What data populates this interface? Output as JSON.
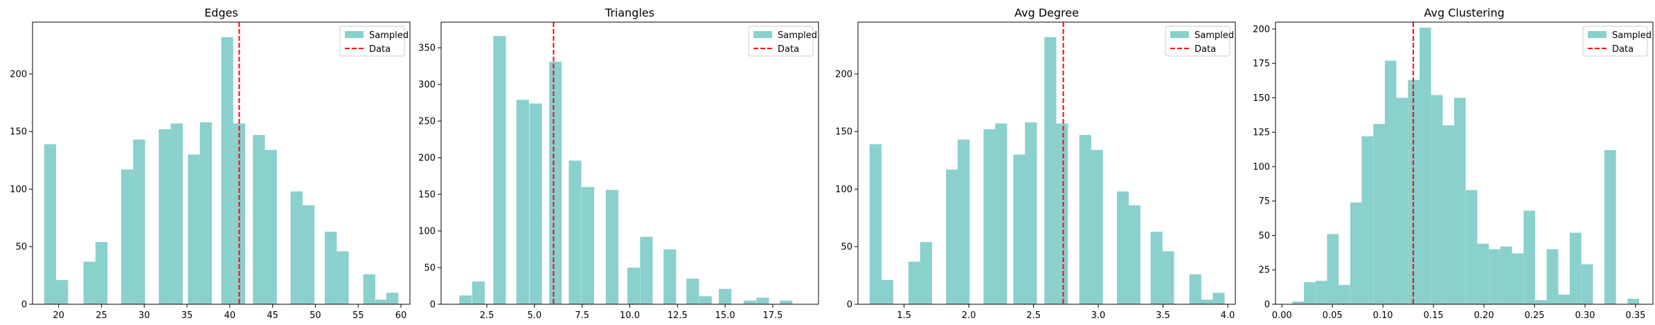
{
  "chart_data": [
    {
      "type": "bar",
      "title": "Edges",
      "xlabel": "",
      "ylabel": "",
      "xlim": [
        16.95,
        61.05
      ],
      "ylim": [
        0,
        245
      ],
      "xticks": [
        20,
        25,
        30,
        35,
        40,
        45,
        50,
        55,
        60
      ],
      "yticks": [
        0,
        50,
        100,
        150,
        200
      ],
      "bar_width": 1.4,
      "bars": [
        {
          "x": 19.0,
          "y": 139
        },
        {
          "x": 20.4,
          "y": 21
        },
        {
          "x": 23.6,
          "y": 37
        },
        {
          "x": 25.0,
          "y": 54
        },
        {
          "x": 28.0,
          "y": 117
        },
        {
          "x": 29.4,
          "y": 143
        },
        {
          "x": 32.4,
          "y": 152
        },
        {
          "x": 33.8,
          "y": 157
        },
        {
          "x": 35.8,
          "y": 130
        },
        {
          "x": 37.2,
          "y": 158
        },
        {
          "x": 39.7,
          "y": 232
        },
        {
          "x": 41.1,
          "y": 157
        },
        {
          "x": 43.4,
          "y": 147
        },
        {
          "x": 44.8,
          "y": 134
        },
        {
          "x": 47.8,
          "y": 98
        },
        {
          "x": 49.2,
          "y": 86
        },
        {
          "x": 51.8,
          "y": 63
        },
        {
          "x": 53.2,
          "y": 46
        },
        {
          "x": 56.3,
          "y": 26
        },
        {
          "x": 57.7,
          "y": 4
        },
        {
          "x": 59.0,
          "y": 10
        }
      ],
      "data_line": 41.1,
      "legend": [
        "Sampled",
        "Data"
      ],
      "legend_position": "top-right",
      "colors": {
        "bar": "#8ad0cd",
        "line": "#ff0000"
      }
    },
    {
      "type": "bar",
      "title": "Triangles",
      "xlabel": "",
      "ylabel": "",
      "xlim": [
        0.1,
        19.9
      ],
      "ylim": [
        0,
        385
      ],
      "xticks": [
        2.5,
        5.0,
        7.5,
        10.0,
        12.5,
        15.0,
        17.5
      ],
      "yticks": [
        0,
        50,
        100,
        150,
        200,
        250,
        300,
        350
      ],
      "bar_width": 0.66,
      "bars": [
        {
          "x": 1.38,
          "y": 12
        },
        {
          "x": 2.06,
          "y": 31
        },
        {
          "x": 3.17,
          "y": 366
        },
        {
          "x": 4.38,
          "y": 279
        },
        {
          "x": 5.06,
          "y": 274
        },
        {
          "x": 6.1,
          "y": 331
        },
        {
          "x": 7.13,
          "y": 196
        },
        {
          "x": 7.8,
          "y": 160
        },
        {
          "x": 9.07,
          "y": 156
        },
        {
          "x": 10.2,
          "y": 50
        },
        {
          "x": 10.87,
          "y": 92
        },
        {
          "x": 12.1,
          "y": 75
        },
        {
          "x": 13.3,
          "y": 35
        },
        {
          "x": 13.97,
          "y": 11
        },
        {
          "x": 15.0,
          "y": 21
        },
        {
          "x": 16.3,
          "y": 5
        },
        {
          "x": 16.97,
          "y": 9
        },
        {
          "x": 18.2,
          "y": 5
        }
      ],
      "data_line": 6.0,
      "legend": [
        "Sampled",
        "Data"
      ],
      "legend_position": "top-right",
      "colors": {
        "bar": "#8ad0cd",
        "line": "#ff0000"
      }
    },
    {
      "type": "bar",
      "title": "Avg Degree",
      "xlabel": "",
      "ylabel": "",
      "xlim": [
        1.144,
        4.059
      ],
      "ylim": [
        0,
        245
      ],
      "xticks": [
        1.5,
        2.0,
        2.5,
        3.0,
        3.5,
        4.0
      ],
      "yticks": [
        0,
        50,
        100,
        150,
        200
      ],
      "bar_width": 0.092,
      "bars": [
        {
          "x": 1.28,
          "y": 139
        },
        {
          "x": 1.37,
          "y": 21
        },
        {
          "x": 1.58,
          "y": 37
        },
        {
          "x": 1.67,
          "y": 54
        },
        {
          "x": 1.87,
          "y": 117
        },
        {
          "x": 1.96,
          "y": 143
        },
        {
          "x": 2.16,
          "y": 152
        },
        {
          "x": 2.25,
          "y": 157
        },
        {
          "x": 2.39,
          "y": 130
        },
        {
          "x": 2.48,
          "y": 158
        },
        {
          "x": 2.63,
          "y": 232
        },
        {
          "x": 2.72,
          "y": 157
        },
        {
          "x": 2.9,
          "y": 147
        },
        {
          "x": 2.99,
          "y": 134
        },
        {
          "x": 3.19,
          "y": 98
        },
        {
          "x": 3.28,
          "y": 86
        },
        {
          "x": 3.45,
          "y": 63
        },
        {
          "x": 3.54,
          "y": 46
        },
        {
          "x": 3.75,
          "y": 26
        },
        {
          "x": 3.84,
          "y": 4
        },
        {
          "x": 3.93,
          "y": 10
        }
      ],
      "data_line": 2.73,
      "legend": [
        "Sampled",
        "Data"
      ],
      "legend_position": "top-right",
      "colors": {
        "bar": "#8ad0cd",
        "line": "#ff0000"
      }
    },
    {
      "type": "bar",
      "title": "Avg Clustering",
      "xlabel": "",
      "ylabel": "",
      "xlim": [
        -0.0063,
        0.3672
      ],
      "ylim": [
        0,
        205
      ],
      "xticks": [
        0.0,
        0.05,
        0.1,
        0.15,
        0.2,
        0.25,
        0.3,
        0.35
      ],
      "yticks": [
        0,
        25,
        50,
        75,
        100,
        125,
        150,
        175,
        200
      ],
      "bar_width": 0.01144,
      "bars": [
        {
          "x": 0.0161,
          "y": 2
        },
        {
          "x": 0.0275,
          "y": 16
        },
        {
          "x": 0.039,
          "y": 17
        },
        {
          "x": 0.0504,
          "y": 51
        },
        {
          "x": 0.0618,
          "y": 14
        },
        {
          "x": 0.0733,
          "y": 74
        },
        {
          "x": 0.0847,
          "y": 122
        },
        {
          "x": 0.0962,
          "y": 131
        },
        {
          "x": 0.1076,
          "y": 177
        },
        {
          "x": 0.119,
          "y": 150
        },
        {
          "x": 0.1305,
          "y": 163
        },
        {
          "x": 0.1419,
          "y": 201
        },
        {
          "x": 0.1534,
          "y": 152
        },
        {
          "x": 0.1648,
          "y": 130
        },
        {
          "x": 0.1762,
          "y": 150
        },
        {
          "x": 0.1877,
          "y": 83
        },
        {
          "x": 0.1991,
          "y": 44
        },
        {
          "x": 0.2106,
          "y": 40
        },
        {
          "x": 0.222,
          "y": 42
        },
        {
          "x": 0.2334,
          "y": 37
        },
        {
          "x": 0.2449,
          "y": 68
        },
        {
          "x": 0.2563,
          "y": 3
        },
        {
          "x": 0.2678,
          "y": 40
        },
        {
          "x": 0.2792,
          "y": 7
        },
        {
          "x": 0.2906,
          "y": 52
        },
        {
          "x": 0.3021,
          "y": 29
        },
        {
          "x": 0.3249,
          "y": 112
        },
        {
          "x": 0.3478,
          "y": 4
        }
      ],
      "data_line": 0.13,
      "legend": [
        "Sampled",
        "Data"
      ],
      "legend_position": "top-right",
      "colors": {
        "bar": "#8ad0cd",
        "line": "#ff0000"
      }
    }
  ]
}
